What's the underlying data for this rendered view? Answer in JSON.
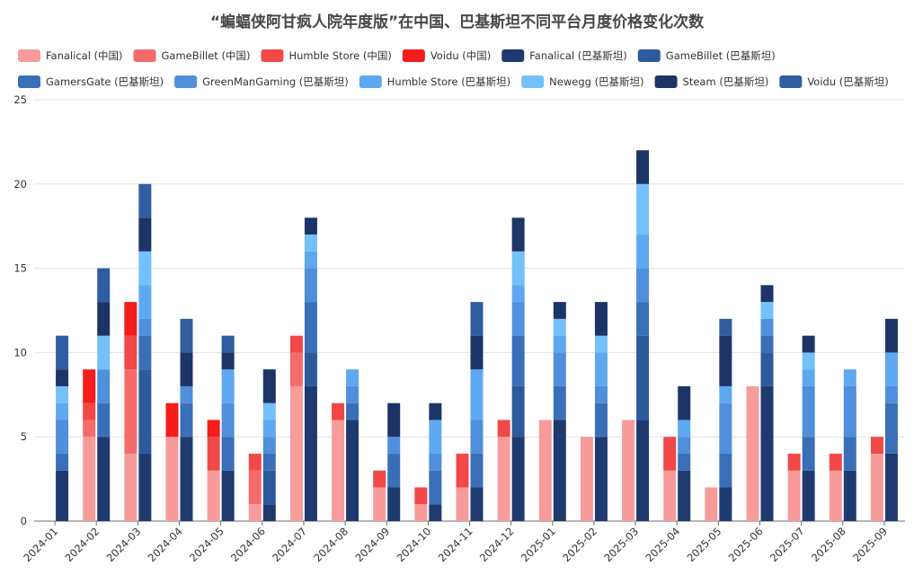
{
  "chart_data": {
    "type": "bar",
    "stacked": true,
    "title": "“蝙蝠侠阿甘疯人院年度版”在中国、巴基斯坦不同平台月度价格变化次数",
    "xlabel": "",
    "ylabel": "",
    "ylim": [
      0,
      25
    ],
    "yticks": [
      0,
      5,
      10,
      15,
      20,
      25
    ],
    "grid": true,
    "legend_position": "top",
    "categories": [
      "2024-01",
      "2024-02",
      "2024-03",
      "2024-04",
      "2024-05",
      "2024-06",
      "2024-07",
      "2024-08",
      "2024-09",
      "2024-10",
      "2024-11",
      "2024-12",
      "2025-01",
      "2025-02",
      "2025-03",
      "2025-04",
      "2025-05",
      "2025-06",
      "2025-07",
      "2025-08",
      "2025-09"
    ],
    "groups": [
      {
        "name": "中国",
        "series": [
          {
            "name": "Fanalical (中国)",
            "color": "#f79b9b",
            "values": [
              0,
              5,
              4,
              5,
              3,
              1,
              8,
              6,
              2,
              1,
              2,
              5,
              6,
              5,
              6,
              3,
              2,
              8,
              3,
              3,
              4
            ]
          },
          {
            "name": "GameBillet (中国)",
            "color": "#f56b6b",
            "values": [
              0,
              1,
              5,
              0,
              0,
              2,
              2,
              0,
              0,
              0,
              0,
              0,
              0,
              0,
              0,
              0,
              0,
              0,
              0,
              0,
              0
            ]
          },
          {
            "name": "Humble Store (中国)",
            "color": "#f24848",
            "values": [
              0,
              1,
              2,
              0,
              2,
              1,
              1,
              1,
              1,
              1,
              2,
              1,
              0,
              0,
              0,
              2,
              0,
              0,
              1,
              1,
              1
            ]
          },
          {
            "name": "Voidu (中国)",
            "color": "#f51c1c",
            "values": [
              0,
              2,
              2,
              2,
              1,
              0,
              0,
              0,
              0,
              0,
              0,
              0,
              0,
              0,
              0,
              0,
              0,
              0,
              0,
              0,
              0
            ]
          }
        ]
      },
      {
        "name": "巴基斯坦",
        "series": [
          {
            "name": "Fanalical (巴基斯坦)",
            "color": "#1f3a6e",
            "values": [
              3,
              5,
              4,
              5,
              3,
              1,
              8,
              6,
              2,
              1,
              2,
              5,
              6,
              5,
              6,
              3,
              2,
              8,
              3,
              3,
              4
            ]
          },
          {
            "name": "GameBillet (巴基斯坦)",
            "color": "#2d5a9c",
            "values": [
              0,
              0,
              5,
              0,
              0,
              2,
              2,
              0,
              0,
              0,
              0,
              3,
              0,
              0,
              5,
              0,
              0,
              2,
              0,
              0,
              0
            ]
          },
          {
            "name": "GamersGate (巴基斯坦)",
            "color": "#3a6fb8",
            "values": [
              1,
              2,
              2,
              2,
              2,
              1,
              3,
              1,
              2,
              2,
              2,
              3,
              2,
              2,
              2,
              1,
              2,
              1,
              2,
              2,
              3
            ]
          },
          {
            "name": "GreenManGaming (巴基斯坦)",
            "color": "#4f8fdb",
            "values": [
              2,
              2,
              1,
              1,
              2,
              1,
              2,
              1,
              1,
              1,
              2,
              2,
              2,
              1,
              2,
              1,
              3,
              1,
              3,
              3,
              1
            ]
          },
          {
            "name": "Humble Store (巴基斯坦)",
            "color": "#5ea8f0",
            "values": [
              1,
              0,
              2,
              0,
              2,
              1,
              1,
              1,
              0,
              2,
              3,
              1,
              1,
              2,
              2,
              1,
              1,
              0,
              1,
              1,
              2
            ]
          },
          {
            "name": "Newegg (巴基斯坦)",
            "color": "#74c0fa",
            "values": [
              1,
              2,
              2,
              0,
              0,
              1,
              1,
              0,
              0,
              0,
              0,
              2,
              1,
              1,
              3,
              0,
              0,
              1,
              1,
              0,
              0
            ]
          },
          {
            "name": "Steam (巴基斯坦)",
            "color": "#1c3566",
            "values": [
              1,
              2,
              2,
              2,
              1,
              2,
              1,
              0,
              2,
              1,
              2,
              2,
              1,
              2,
              2,
              2,
              3,
              1,
              1,
              0,
              2
            ]
          },
          {
            "name": "Voidu (巴基斯坦)",
            "color": "#2f5da0",
            "values": [
              2,
              2,
              2,
              2,
              1,
              0,
              0,
              0,
              0,
              0,
              2,
              0,
              0,
              0,
              0,
              0,
              1,
              0,
              0,
              0,
              0
            ]
          }
        ]
      }
    ]
  }
}
